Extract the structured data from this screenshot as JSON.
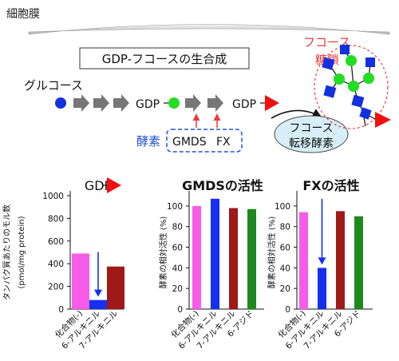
{
  "colors": {
    "bar_pink": "#F75BE9",
    "bar_blue": "#1530F0",
    "bar_darkred": "#A01818",
    "bar_green": "#1E8A1E",
    "flag_red": "#F20F0F",
    "circle_blue": "#1230E0",
    "circle_green": "#22DD22",
    "arrow_gray": "#777777",
    "enzyme_red": "#F03A3A",
    "enzyme_box_blue": "#2350D8",
    "transfer_fill": "#D7EEF6"
  },
  "diagram": {
    "membrane_label": "細胞膜",
    "title": "GDP-フコースの生合成",
    "glucose_label": "グルコース",
    "gdp_label_1": "GDP",
    "gdp_label_2": "GDP",
    "fucose_chain_label_1": "フコース",
    "fucose_chain_label_2": "糖鎖",
    "enzyme_label": "酵素",
    "enzyme_gmds": "GMDS",
    "enzyme_fx": "FX",
    "transferase_label_1": "フコース",
    "transferase_label_2": "転移酵素"
  },
  "chart_data": [
    {
      "type": "bar",
      "title": "GDP",
      "title_icon": "fucose-flag-icon",
      "ylabel_lines": [
        "タンパク質あたりのモル数",
        "(pmol/mg protein)"
      ],
      "ylim": [
        0,
        1000
      ],
      "yticks": [
        "0",
        "200",
        "400",
        "600",
        "800",
        "1000"
      ],
      "categories": [
        "化合物(-)",
        "6-アルキニル",
        "7-アルキニル"
      ],
      "values": [
        490,
        80,
        375
      ],
      "annotation": "down-arrow-on-6-alkynyl"
    },
    {
      "type": "bar",
      "title": "GMDSの活性",
      "ylabel": "酵素の相対活性 (%)",
      "ylim": [
        0,
        110
      ],
      "yticks": [
        "0",
        "20",
        "40",
        "60",
        "80",
        "100"
      ],
      "categories": [
        "化合物(-)",
        "6-アルキニル",
        "7-アルキニル",
        "6-アジド"
      ],
      "values": [
        100,
        107,
        98,
        97
      ]
    },
    {
      "type": "bar",
      "title": "FXの活性",
      "ylabel": "酵素の相対活性 (%)",
      "ylim": [
        0,
        110
      ],
      "yticks": [
        "0",
        "20",
        "40",
        "60",
        "80",
        "100"
      ],
      "categories": [
        "化合物(-)",
        "6-アルキニル",
        "7-アルキニル",
        "6-アジド"
      ],
      "values": [
        94,
        40,
        95,
        90
      ],
      "annotation": "down-arrow-on-6-alkynyl"
    }
  ]
}
